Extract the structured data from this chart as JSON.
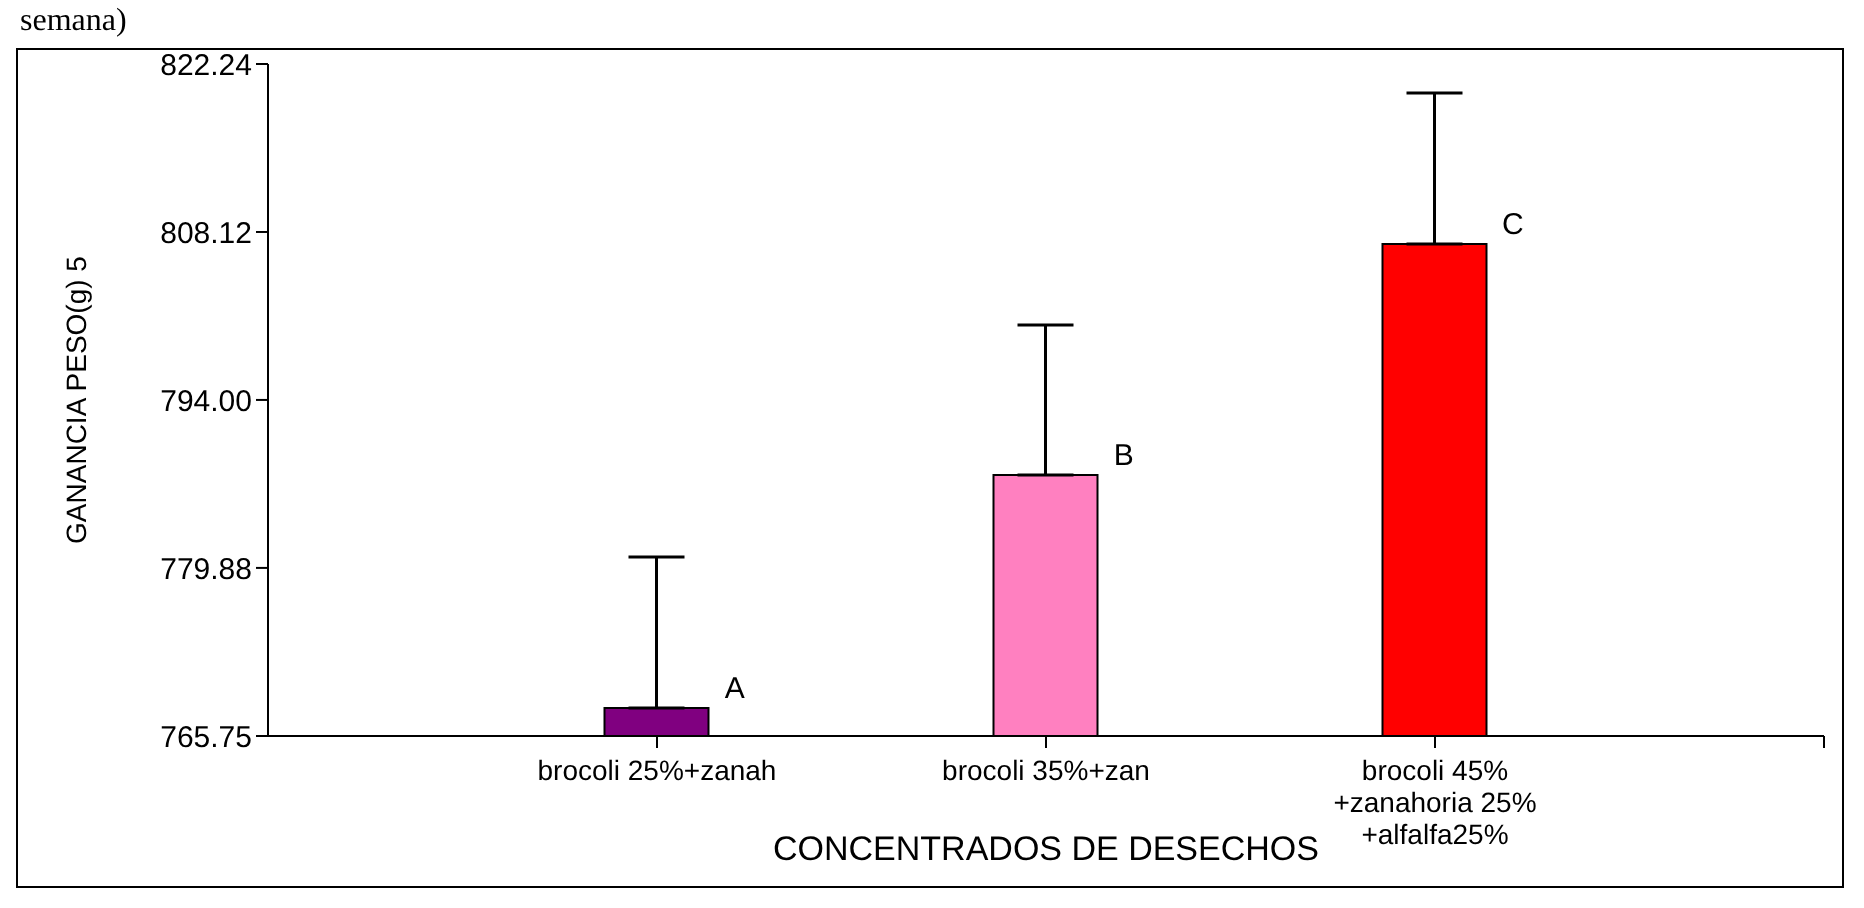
{
  "chart_data": {
    "type": "bar",
    "title": "semana)",
    "xlabel": "CONCENTRADOS DE DESECHOS",
    "ylabel": "GANANCIA PESO(g) 5",
    "categories": [
      "brocoli 25%+zanah",
      "brocoli 35%+zan",
      "brocoli 45%+zanahoria 25%+alfalfa25%"
    ],
    "values": [
      768.1,
      787.7,
      807.1
    ],
    "colors": [
      "#800080",
      "#ff80c0",
      "#ff0000"
    ],
    "errors": [
      [
        768.1,
        780.8
      ],
      [
        787.7,
        800.3
      ],
      [
        807.1,
        819.8
      ]
    ],
    "ylim": [
      765.75,
      822.24
    ],
    "yticks": [
      765.75,
      779.88,
      {
        "value": 794,
        "label": "794.00"
      },
      808.12,
      822.24
    ],
    "annotations": [
      {
        "text": "A",
        "x": "brocoli 25%+zanah",
        "y": 768.1
      },
      {
        "text": "B",
        "x": "brocoli 35%+zan",
        "y": 787.7
      },
      {
        "text": "C",
        "x": "brocoli 45%+zanahoria 25%+alfalfa25%",
        "y": 807.1
      }
    ],
    "grid": false,
    "legend": false
  }
}
